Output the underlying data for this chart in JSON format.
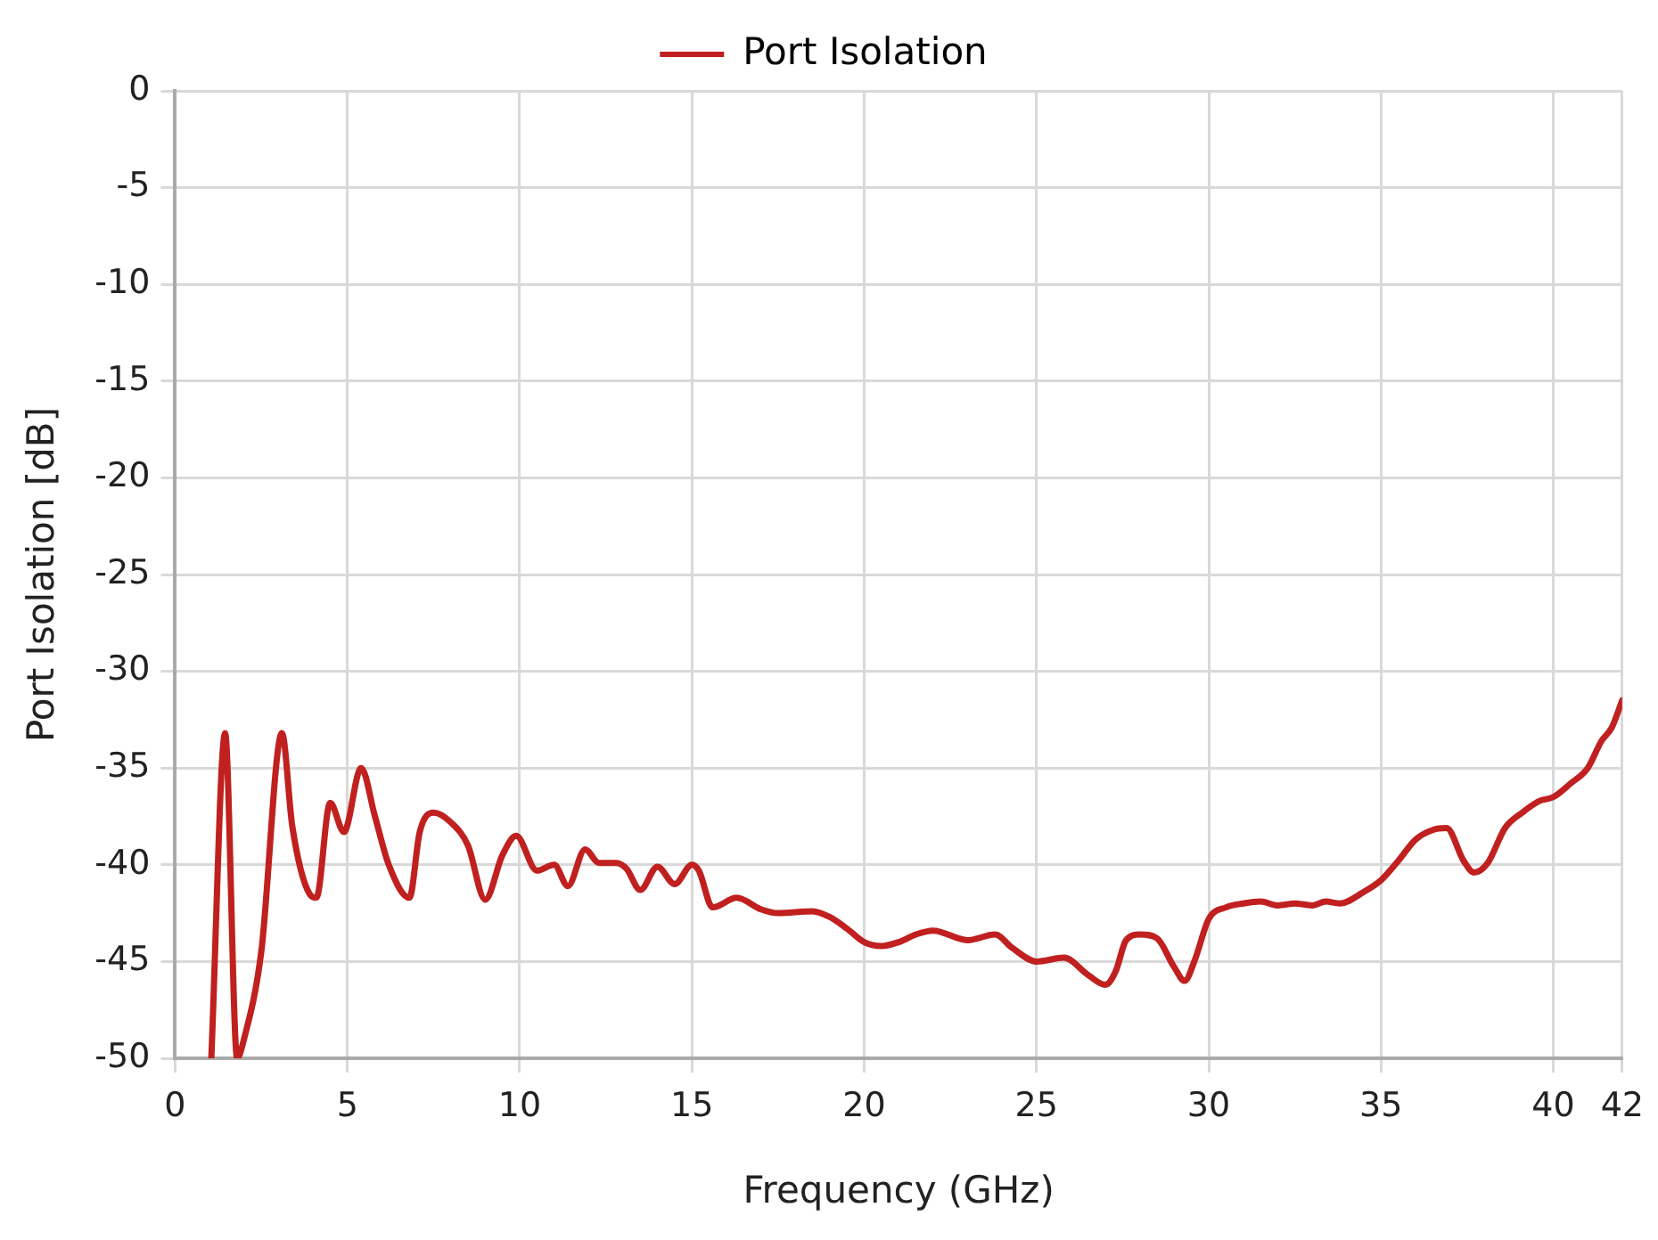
{
  "chart_data": {
    "type": "line",
    "xlabel": "Frequency (GHz)",
    "ylabel": "Port Isolation [dB]",
    "xlim": [
      0,
      42
    ],
    "xticks": [
      0,
      5,
      10,
      15,
      20,
      25,
      30,
      35,
      40,
      42
    ],
    "ylim": [
      -50,
      0
    ],
    "yticks": [
      -50,
      -45,
      -40,
      -35,
      -30,
      -25,
      -20,
      -15,
      -10,
      -5,
      0
    ],
    "grid": true,
    "legend": "top",
    "marker": "none",
    "line_style": "solid",
    "x": [
      1.05,
      1.45,
      1.8,
      2.0,
      2.5,
      3.1,
      3.4,
      3.9,
      4.1,
      4.5,
      4.9,
      5.4,
      5.8,
      6.2,
      6.8,
      7.1,
      7.5,
      8.0,
      8.5,
      9.0,
      9.5,
      9.9,
      10.5,
      11.0,
      11.4,
      11.9,
      12.3,
      12.8,
      13.1,
      13.5,
      14.0,
      14.5,
      15.0,
      15.2,
      15.6,
      16.3,
      17.0,
      17.5,
      18.5,
      19.0,
      19.5,
      20.0,
      20.5,
      21.0,
      21.5,
      22.0,
      23.0,
      23.8,
      24.3,
      25.0,
      25.8,
      26.5,
      27.0,
      27.3,
      27.6,
      28.0,
      28.5,
      29.0,
      29.3,
      29.6,
      30.0,
      30.5,
      31.0,
      31.5,
      32.0,
      32.5,
      33.0,
      33.4,
      33.8,
      34.5,
      35.0,
      35.5,
      36.0,
      36.5,
      36.9,
      37.4,
      37.7,
      38.1,
      38.6,
      39.1,
      39.6,
      40.0,
      40.5,
      41.0,
      41.4,
      41.7,
      42.0
    ],
    "series": [
      {
        "name": "Port Isolation",
        "color": "#c0201f",
        "values": [
          -50,
          -33.2,
          -50,
          -49,
          -44.5,
          -33.2,
          -38,
          -41.5,
          -41.7,
          -36.8,
          -38.3,
          -35,
          -37.5,
          -40,
          -41.7,
          -38.3,
          -37.3,
          -37.8,
          -39,
          -41.8,
          -39.5,
          -38.5,
          -40.3,
          -40,
          -41.1,
          -39.2,
          -39.9,
          -39.9,
          -40.2,
          -41.3,
          -40.1,
          -41,
          -40,
          -40.3,
          -42.2,
          -41.7,
          -42.3,
          -42.5,
          -42.4,
          -42.7,
          -43.3,
          -44,
          -44.2,
          -44,
          -43.6,
          -43.4,
          -43.9,
          -43.6,
          -44.3,
          -45,
          -44.8,
          -45.7,
          -46.2,
          -45.5,
          -43.9,
          -43.6,
          -43.8,
          -45.3,
          -46,
          -44.9,
          -42.8,
          -42.2,
          -42,
          -41.9,
          -42.1,
          -42,
          -42.1,
          -41.9,
          -42,
          -41.4,
          -40.8,
          -39.8,
          -38.7,
          -38.2,
          -38.1,
          -39.8,
          -40.4,
          -39.9,
          -38.1,
          -37.3,
          -36.7,
          -36.5,
          -35.8,
          -35,
          -33.6,
          -32.9,
          -31.5
        ]
      }
    ]
  }
}
